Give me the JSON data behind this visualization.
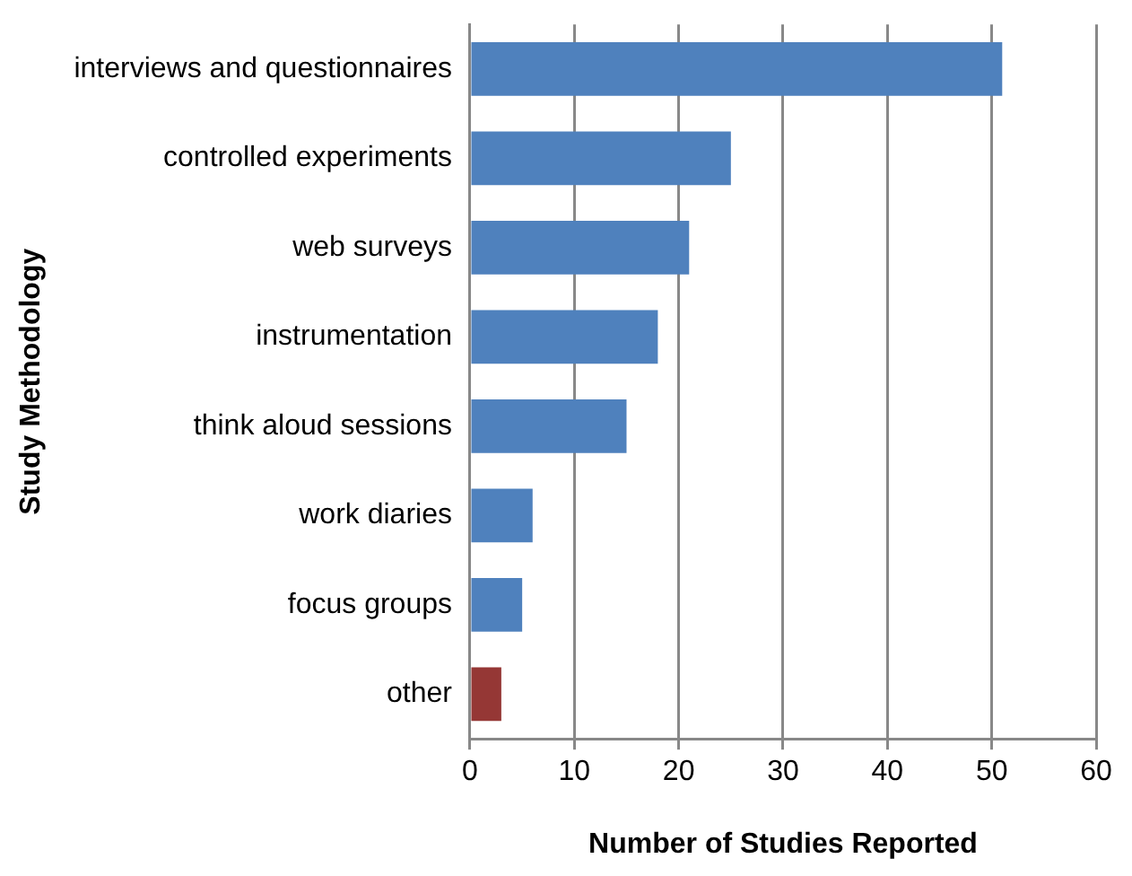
{
  "chart_data": {
    "type": "bar",
    "orientation": "horizontal",
    "xlabel": "Number of Studies Reported",
    "ylabel": "Study Methodology",
    "categories": [
      "interviews and questionnaires",
      "controlled experiments",
      "web surveys",
      "instrumentation",
      "think aloud sessions",
      "work diaries",
      "focus groups",
      "other"
    ],
    "values": [
      51,
      25,
      21,
      18,
      15,
      6,
      5,
      3
    ],
    "colors": [
      "#4f81bd",
      "#4f81bd",
      "#4f81bd",
      "#4f81bd",
      "#4f81bd",
      "#4f81bd",
      "#4f81bd",
      "#953735"
    ],
    "xlim": [
      0,
      60
    ],
    "xticks": [
      0,
      10,
      20,
      30,
      40,
      50,
      60
    ],
    "grid": "x",
    "legend": false
  }
}
